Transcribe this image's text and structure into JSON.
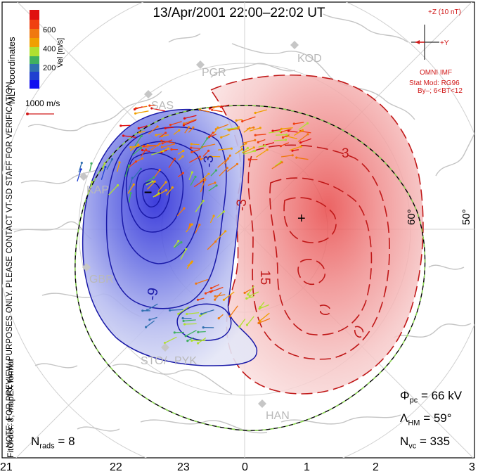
{
  "title": "13/Apr/2001 22:00–22:02 UT",
  "coords_label": "MLT coordinates",
  "colorbar": {
    "label": "Vel [m/s]",
    "ticks": [
      "600",
      "400",
      "200"
    ],
    "colors": [
      "#e01010",
      "#f06010",
      "#f0a000",
      "#f0e020",
      "#80e040",
      "#40b060",
      "#3080a0",
      "#2040d0",
      "#1010f0"
    ]
  },
  "vector_scale": "1000 m/s",
  "imf": {
    "z_label": "+Z (10 nT)",
    "y_label": "+Y",
    "source": "OMNI IMF",
    "model": "Stat Mod: RG96",
    "condition": "By–; 6<BT<12"
  },
  "latitude_labels": [
    "60°",
    "50°"
  ],
  "contour_labels": {
    "neg_outer": "-3",
    "neg_mid": "-9",
    "neg_inner": "-15",
    "pos_outer": "3",
    "pos_mid": "-3",
    "pos_inner": "15",
    "neg_marker": "–",
    "pos_marker": "+"
  },
  "stations": [
    "KOD",
    "PGR",
    "SAS",
    "KAP",
    "GBR",
    "STO",
    "PYK",
    "HAN"
  ],
  "watermark": "NOTE: FOR PREVIEW PURPOSES ONLY. PLEASE CONTACT VT-SD STAFF FOR VERIFICATION.",
  "fit_order": "FitOrder: 8, mapEX format",
  "stats": {
    "phi_symbol": "Φ",
    "phi_sub": "pc",
    "phi_value": "= 66 kV",
    "lambda_symbol": "Λ",
    "lambda_sub": "HM",
    "lambda_value": "= 59°",
    "n_symbol": "N",
    "n_sub": "vc",
    "n_value": "= 335",
    "nrads_symbol": "N",
    "nrads_sub": "rads",
    "nrads_value": "= 8"
  },
  "mlt_axis": [
    "21",
    "22",
    "23",
    "0",
    "1",
    "2",
    "3"
  ],
  "colors": {
    "negative_fill": "#4a55e0",
    "positive_fill": "#e85a5a",
    "negative_line": "#1a1aa8",
    "positive_line": "#c01818",
    "annotation_red": "#d11a1a",
    "map_gray": "#c0c0c0"
  }
}
